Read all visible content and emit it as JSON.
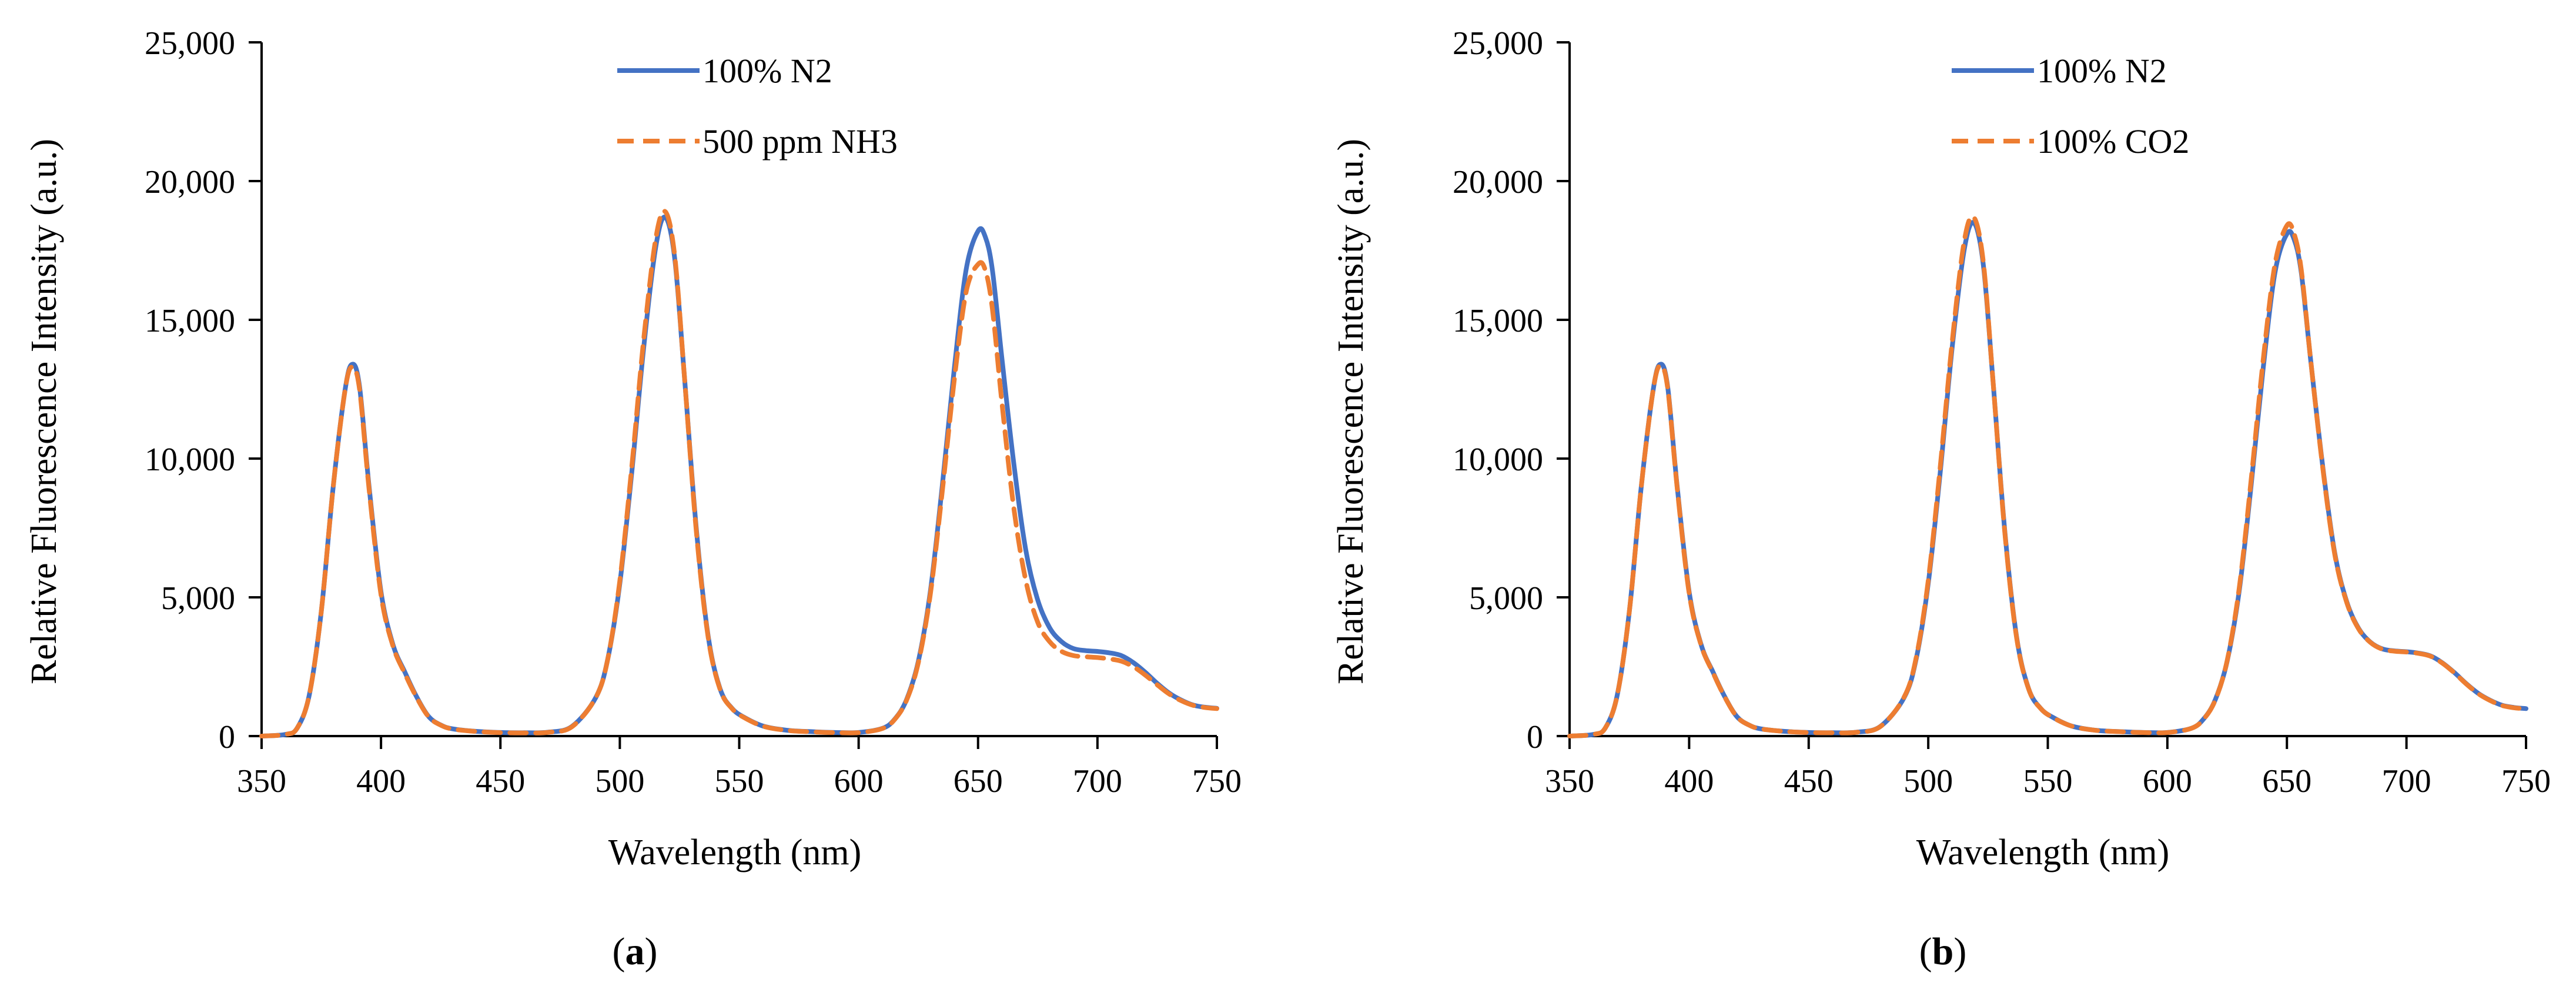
{
  "chart_data": [
    {
      "type": "line",
      "panel_label": "a",
      "title": "",
      "xlabel": "Wavelength (nm)",
      "ylabel": "Relative Fluorescence Intensity (a.u.)",
      "xlim": [
        350,
        750
      ],
      "ylim": [
        0,
        25000
      ],
      "x_ticks": [
        350,
        400,
        450,
        500,
        550,
        600,
        650,
        700,
        750
      ],
      "y_ticks": [
        0,
        5000,
        10000,
        15000,
        20000,
        25000
      ],
      "x_tick_labels": [
        "350",
        "400",
        "450",
        "500",
        "550",
        "600",
        "650",
        "700",
        "750"
      ],
      "y_tick_labels": [
        "0",
        "5,000",
        "10,000",
        "15,000",
        "20,000",
        "25,000"
      ],
      "legend_position": "top-center",
      "x": [
        350,
        360,
        365,
        370,
        375,
        380,
        385,
        388,
        391,
        395,
        400,
        405,
        410,
        415,
        420,
        425,
        430,
        440,
        450,
        460,
        470,
        480,
        490,
        495,
        500,
        505,
        510,
        515,
        519,
        523,
        527,
        532,
        537,
        542,
        547,
        552,
        560,
        570,
        580,
        590,
        600,
        610,
        615,
        620,
        625,
        630,
        635,
        640,
        645,
        650,
        653,
        656,
        660,
        665,
        670,
        675,
        680,
        685,
        690,
        695,
        700,
        705,
        710,
        715,
        720,
        725,
        730,
        735,
        740,
        745,
        750
      ],
      "series": [
        {
          "name": "100% N2",
          "color": "#4472C4",
          "style": "solid",
          "values": [
            0,
            60,
            300,
            1500,
            4500,
            9000,
            12500,
            13400,
            12600,
            9000,
            5200,
            3300,
            2300,
            1400,
            700,
            400,
            260,
            170,
            130,
            120,
            140,
            350,
            1400,
            2800,
            5500,
            9500,
            14000,
            17600,
            18700,
            17200,
            13000,
            7500,
            3600,
            1700,
            1000,
            680,
            360,
            210,
            160,
            130,
            130,
            280,
            600,
            1300,
            2700,
            5200,
            9000,
            13200,
            16800,
            18200,
            18000,
            16800,
            13600,
            9800,
            6700,
            4900,
            3900,
            3400,
            3150,
            3080,
            3050,
            3000,
            2900,
            2650,
            2300,
            1900,
            1550,
            1300,
            1120,
            1040,
            1000
          ]
        },
        {
          "name": "500 ppm NH3",
          "color": "#ED7D31",
          "style": "dashed",
          "values": [
            0,
            60,
            300,
            1500,
            4500,
            9000,
            12500,
            13300,
            12500,
            8900,
            5100,
            3250,
            2250,
            1380,
            690,
            395,
            255,
            165,
            125,
            115,
            135,
            340,
            1400,
            2800,
            5600,
            9700,
            14300,
            17900,
            18900,
            17300,
            13000,
            7400,
            3550,
            1680,
            990,
            670,
            355,
            205,
            155,
            125,
            125,
            275,
            590,
            1280,
            2650,
            5100,
            8800,
            12800,
            16000,
            17000,
            16800,
            15400,
            12000,
            8200,
            5600,
            4100,
            3400,
            3050,
            2900,
            2860,
            2830,
            2780,
            2700,
            2500,
            2200,
            1850,
            1520,
            1280,
            1110,
            1030,
            990
          ]
        }
      ]
    },
    {
      "type": "line",
      "panel_label": "b",
      "title": "",
      "xlabel": "Wavelength (nm)",
      "ylabel": "Relative Fluorescence Intensity (a.u.)",
      "xlim": [
        350,
        750
      ],
      "ylim": [
        0,
        25000
      ],
      "x_ticks": [
        350,
        400,
        450,
        500,
        550,
        600,
        650,
        700,
        750
      ],
      "y_ticks": [
        0,
        5000,
        10000,
        15000,
        20000,
        25000
      ],
      "x_tick_labels": [
        "350",
        "400",
        "450",
        "500",
        "550",
        "600",
        "650",
        "700",
        "750"
      ],
      "y_tick_labels": [
        "0",
        "5,000",
        "10,000",
        "15,000",
        "20,000",
        "25,000"
      ],
      "legend_position": "top-center",
      "x": [
        350,
        360,
        365,
        370,
        375,
        380,
        385,
        388,
        391,
        395,
        400,
        405,
        410,
        415,
        420,
        425,
        430,
        440,
        450,
        460,
        470,
        480,
        490,
        495,
        500,
        505,
        510,
        515,
        519,
        523,
        527,
        532,
        537,
        542,
        547,
        552,
        560,
        570,
        580,
        590,
        600,
        610,
        615,
        620,
        625,
        630,
        635,
        640,
        645,
        650,
        653,
        656,
        660,
        665,
        670,
        675,
        680,
        685,
        690,
        695,
        700,
        705,
        710,
        715,
        720,
        725,
        730,
        735,
        740,
        745,
        750
      ],
      "series": [
        {
          "name": "100% N2",
          "color": "#4472C4",
          "style": "solid",
          "values": [
            0,
            60,
            300,
            1500,
            4500,
            9000,
            12500,
            13400,
            12600,
            9000,
            5200,
            3300,
            2300,
            1400,
            700,
            400,
            260,
            170,
            130,
            120,
            140,
            350,
            1400,
            2800,
            5500,
            9500,
            14000,
            17500,
            18500,
            17000,
            12900,
            7400,
            3550,
            1700,
            1000,
            680,
            360,
            210,
            160,
            130,
            130,
            280,
            600,
            1300,
            2700,
            5200,
            9000,
            13200,
            16700,
            18100,
            17900,
            16700,
            13500,
            9700,
            6600,
            4850,
            3880,
            3380,
            3140,
            3070,
            3040,
            2990,
            2890,
            2640,
            2290,
            1890,
            1540,
            1290,
            1110,
            1030,
            990
          ]
        },
        {
          "name": "100% CO2",
          "color": "#ED7D31",
          "style": "dashed",
          "values": [
            0,
            60,
            300,
            1500,
            4500,
            9000,
            12500,
            13350,
            12550,
            8950,
            5150,
            3280,
            2280,
            1390,
            695,
            398,
            258,
            168,
            128,
            118,
            138,
            345,
            1420,
            2850,
            5600,
            9700,
            14200,
            17800,
            18700,
            17100,
            12900,
            7350,
            3520,
            1690,
            995,
            675,
            358,
            208,
            158,
            128,
            128,
            278,
            595,
            1290,
            2720,
            5300,
            9200,
            13500,
            17000,
            18400,
            18100,
            16800,
            13500,
            9650,
            6550,
            4820,
            3860,
            3370,
            3130,
            3060,
            3030,
            2980,
            2880,
            2630,
            2280,
            1880,
            1530,
            1280,
            1100,
            1020,
            980
          ]
        }
      ]
    }
  ],
  "captions": [
    {
      "open": "(",
      "letter": "a",
      "close": ")"
    },
    {
      "open": "(",
      "letter": "b",
      "close": ")"
    }
  ]
}
